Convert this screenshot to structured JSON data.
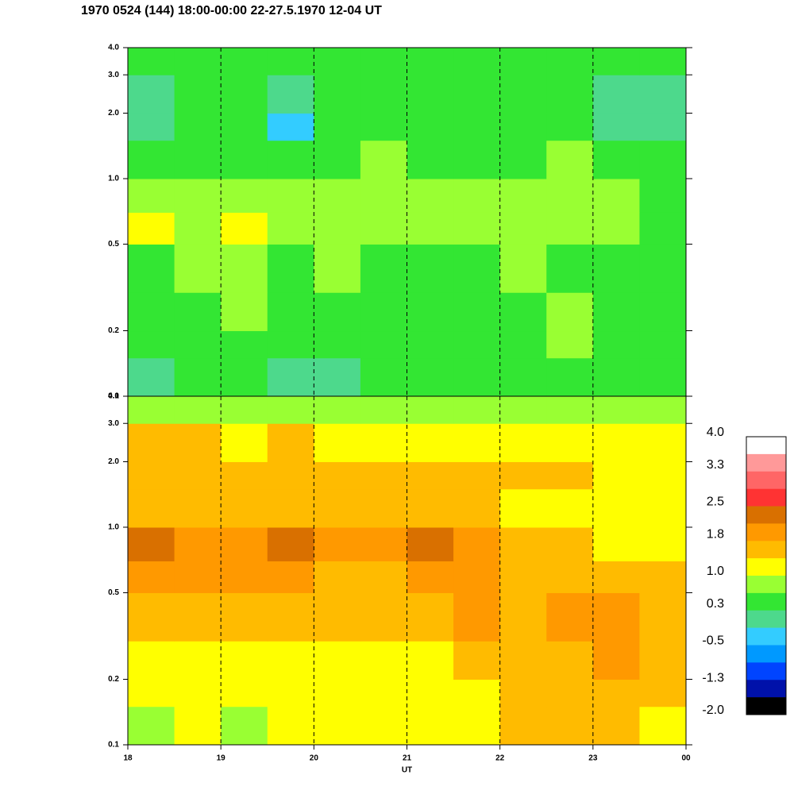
{
  "chart_data": [
    {
      "type": "heatmap",
      "title": "1970 0524 (144) 18:00-00:00 22-27.5.1970  12-04 UT",
      "xlim": [
        18,
        24
      ],
      "ylim": [
        0.1,
        4
      ],
      "log_y": true,
      "grid": true,
      "xticks": [
        19,
        20,
        21,
        22,
        23
      ],
      "yticks": [
        0.1,
        0.2,
        0.5,
        {
          "value": 1,
          "label": "1.0"
        },
        {
          "value": 2,
          "label": "2.0"
        },
        {
          "value": 3,
          "label": "3.0"
        },
        {
          "value": 4,
          "label": "4.0"
        }
      ],
      "x_edges": [
        18,
        18.5,
        19,
        19.5,
        20,
        20.5,
        21,
        21.5,
        22,
        22.5,
        23,
        23.5,
        24
      ],
      "y_edges": [
        0.1,
        0.15,
        0.2,
        0.3,
        0.5,
        0.7,
        1,
        1.5,
        2,
        3,
        4
      ],
      "z": [
        [
          0.1,
          0.3,
          0.4,
          0.1,
          0.0,
          0.3,
          0.4,
          0.3,
          0.3,
          0.4,
          0.4,
          0.3
        ],
        [
          0.4,
          0.5,
          0.5,
          0.6,
          0.4,
          0.5,
          0.5,
          0.4,
          0.5,
          0.7,
          0.5,
          0.4
        ],
        [
          0.5,
          0.6,
          0.7,
          0.5,
          0.6,
          0.5,
          0.5,
          0.5,
          0.6,
          0.7,
          0.5,
          0.5
        ],
        [
          0.5,
          0.7,
          0.8,
          0.6,
          0.7,
          0.5,
          0.5,
          0.6,
          0.7,
          0.6,
          0.5,
          0.5
        ],
        [
          1.1,
          0.9,
          1.1,
          0.8,
          1.0,
          0.8,
          0.9,
          0.8,
          0.8,
          0.8,
          0.7,
          0.6
        ],
        [
          0.8,
          0.8,
          0.9,
          0.7,
          0.8,
          0.9,
          0.9,
          0.8,
          0.8,
          0.8,
          0.7,
          0.6
        ],
        [
          0.6,
          0.5,
          0.6,
          0.4,
          0.6,
          0.7,
          0.6,
          0.6,
          0.6,
          0.7,
          0.5,
          0.4
        ],
        [
          0.2,
          0.3,
          0.4,
          -0.3,
          0.3,
          0.3,
          0.4,
          0.3,
          0.4,
          0.4,
          0.0,
          0.1
        ],
        [
          0.2,
          0.3,
          0.3,
          0.0,
          0.3,
          0.3,
          0.3,
          0.3,
          0.3,
          0.3,
          0.1,
          0.2
        ],
        [
          0.4,
          0.4,
          0.3,
          0.3,
          0.4,
          0.4,
          0.4,
          0.3,
          0.4,
          0.4,
          0.3,
          0.3
        ]
      ]
    },
    {
      "type": "heatmap",
      "xlabel": "UT",
      "xlim": [
        18,
        24
      ],
      "ylim": [
        0.1,
        4
      ],
      "log_y": true,
      "grid": true,
      "xticks": [
        18,
        19,
        20,
        21,
        22,
        23,
        {
          "value": 24,
          "label": "00"
        }
      ],
      "yticks": [
        0.1,
        0.2,
        0.5,
        {
          "value": 1,
          "label": "1.0"
        },
        {
          "value": 2,
          "label": "2.0"
        },
        {
          "value": 3,
          "label": "3.0"
        },
        {
          "value": 4,
          "label": "4.0"
        }
      ],
      "x_edges": [
        18,
        18.5,
        19,
        19.5,
        20,
        20.5,
        21,
        21.5,
        22,
        22.5,
        23,
        23.5,
        24
      ],
      "y_edges": [
        0.1,
        0.15,
        0.2,
        0.3,
        0.5,
        0.7,
        1,
        1.5,
        2,
        3,
        4
      ],
      "z": [
        [
          1.0,
          1.1,
          1.0,
          1.1,
          1.2,
          1.1,
          1.1,
          1.2,
          1.4,
          1.4,
          1.4,
          1.3
        ],
        [
          1.2,
          1.2,
          1.2,
          1.2,
          1.2,
          1.2,
          1.2,
          1.3,
          1.5,
          1.5,
          1.6,
          1.5
        ],
        [
          1.3,
          1.3,
          1.3,
          1.3,
          1.3,
          1.3,
          1.3,
          1.4,
          1.6,
          1.6,
          1.8,
          1.7
        ],
        [
          1.5,
          1.6,
          1.5,
          1.6,
          1.5,
          1.4,
          1.5,
          1.8,
          1.7,
          1.8,
          1.8,
          1.5
        ],
        [
          1.8,
          1.9,
          1.8,
          1.9,
          1.7,
          1.7,
          1.8,
          1.8,
          1.5,
          1.6,
          1.5,
          1.4
        ],
        [
          2.2,
          2.0,
          2.0,
          2.2,
          1.9,
          2.1,
          2.2,
          2.0,
          1.4,
          1.4,
          1.3,
          1.2
        ],
        [
          1.6,
          1.6,
          1.6,
          1.6,
          1.5,
          1.5,
          1.5,
          1.5,
          1.3,
          1.3,
          1.2,
          1.2
        ],
        [
          1.6,
          1.7,
          1.6,
          1.7,
          1.6,
          1.5,
          1.6,
          1.6,
          1.4,
          1.4,
          1.3,
          1.3
        ],
        [
          1.4,
          1.4,
          1.3,
          1.4,
          1.3,
          1.3,
          1.3,
          1.3,
          1.2,
          1.2,
          1.1,
          1.1
        ],
        [
          0.9,
          0.8,
          0.9,
          0.9,
          0.8,
          0.8,
          0.8,
          0.8,
          0.7,
          0.7,
          0.7,
          0.7
        ]
      ],
      "colorbar": {
        "zlim": [
          -2,
          4
        ],
        "colors": [
          "#ffffff",
          "#ff9999",
          "#ff6666",
          "#ff3333",
          "#d97000",
          "#ff9900",
          "#ffbb00",
          "#ffff00",
          "#99ff33",
          "#33e633",
          "#4dd98c",
          "#33ccff",
          "#0099ff",
          "#0044ff",
          "#0011aa",
          "#000000"
        ],
        "ticks": [
          {
            "value": 4,
            "label": "4.0"
          },
          3.3,
          2.5,
          1.8,
          {
            "value": 1,
            "label": "1.0"
          },
          0.3,
          -0.5,
          -1.3,
          {
            "value": -2,
            "label": "-2.0"
          }
        ]
      }
    }
  ]
}
